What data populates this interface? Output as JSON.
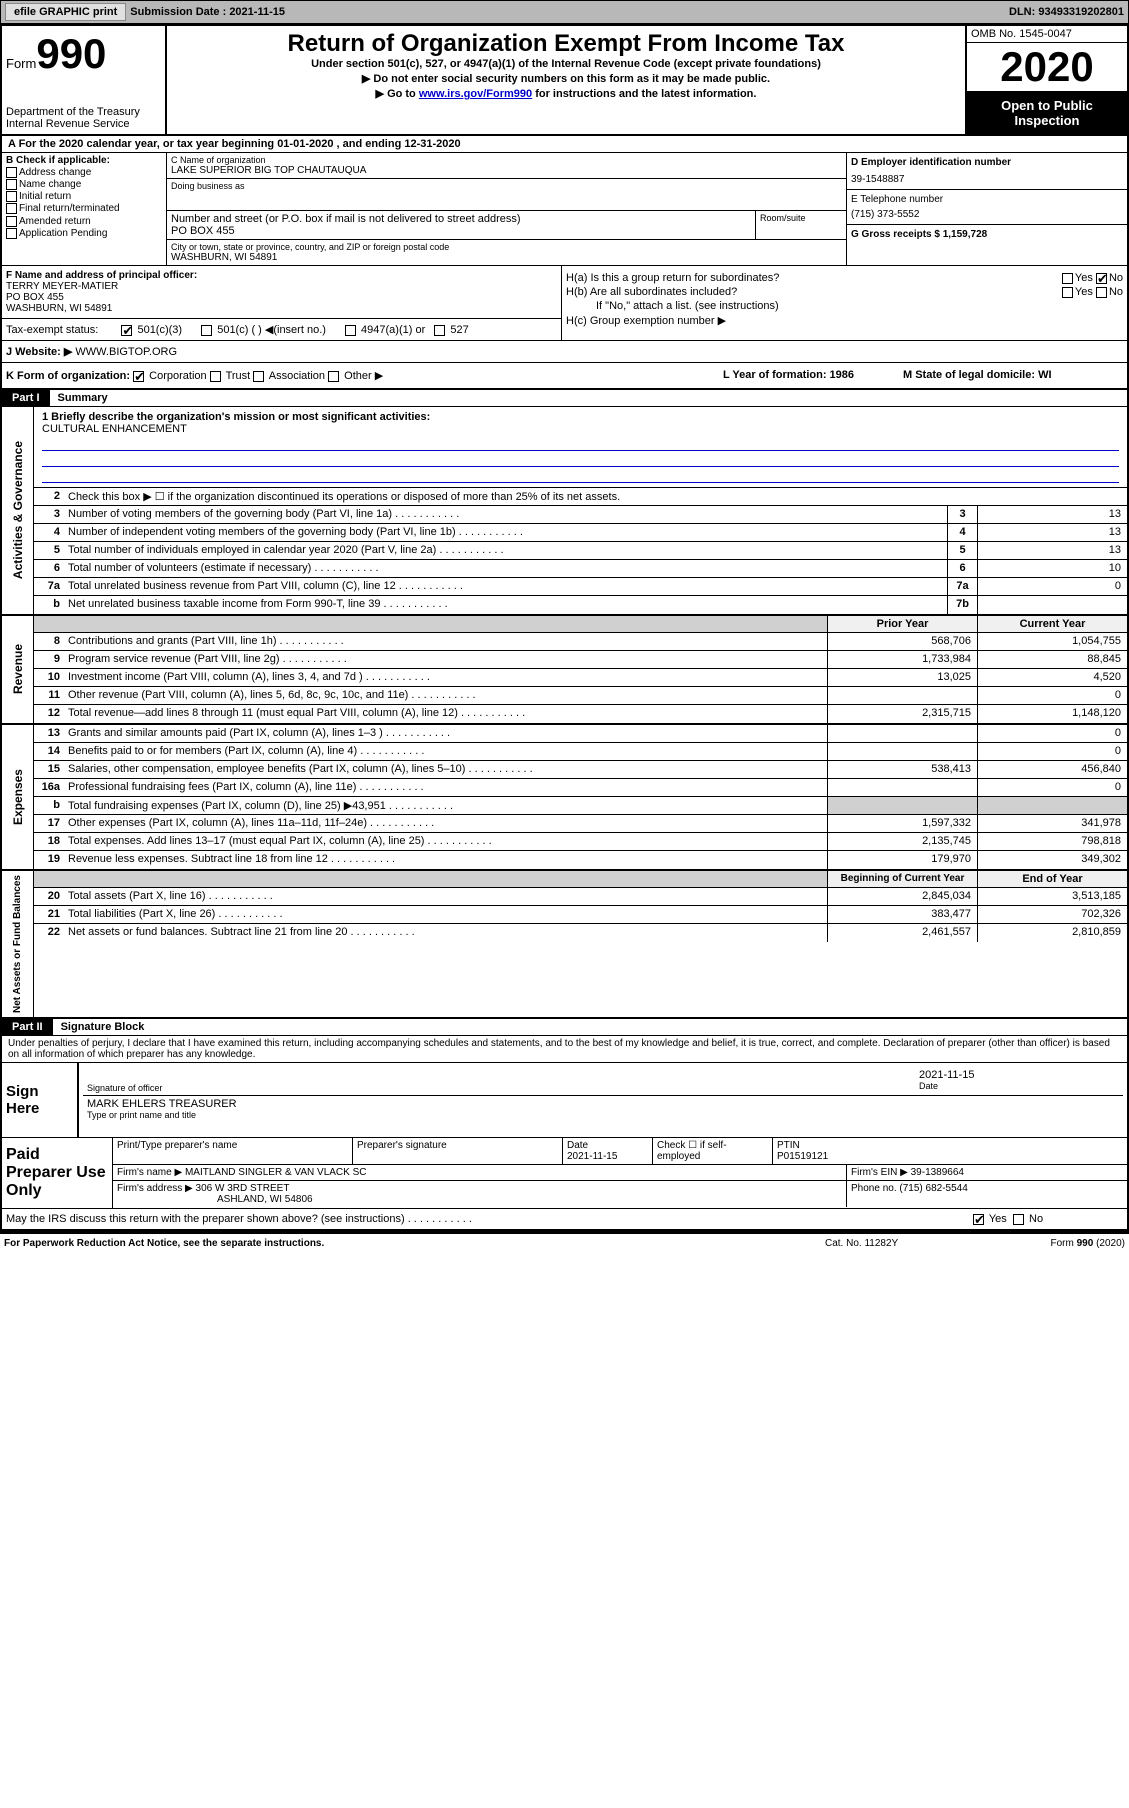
{
  "toolbar": {
    "efile": "efile GRAPHIC print",
    "submission_label": "Submission Date : 2021-11-15",
    "dln": "DLN: 93493319202801"
  },
  "header": {
    "form_prefix": "Form",
    "form_number": "990",
    "dept": "Department of the Treasury\nInternal Revenue Service",
    "title": "Return of Organization Exempt From Income Tax",
    "subtitle": "Under section 501(c), 527, or 4947(a)(1) of the Internal Revenue Code (except private foundations)",
    "line1": "▶ Do not enter social security numbers on this form as it may be made public.",
    "line2_pre": "▶ Go to ",
    "line2_link": "www.irs.gov/Form990",
    "line2_post": " for instructions and the latest information.",
    "omb": "OMB No. 1545-0047",
    "year": "2020",
    "open": "Open to Public Inspection"
  },
  "row_a": "A For the 2020 calendar year, or tax year beginning 01-01-2020    , and ending 12-31-2020",
  "col_b": {
    "header": "B Check if applicable:",
    "items": [
      "Address change",
      "Name change",
      "Initial return",
      "Final return/terminated",
      "Amended return",
      "Application Pending"
    ]
  },
  "col_c": {
    "name_lbl": "C Name of organization",
    "name": "LAKE SUPERIOR BIG TOP CHAUTAUQUA",
    "dba_lbl": "Doing business as",
    "addr_lbl": "Number and street (or P.O. box if mail is not delivered to street address)",
    "addr": "PO BOX 455",
    "room_lbl": "Room/suite",
    "city_lbl": "City or town, state or province, country, and ZIP or foreign postal code",
    "city": "WASHBURN, WI  54891"
  },
  "col_d": {
    "ein_lbl": "D Employer identification number",
    "ein": "39-1548887",
    "phone_lbl": "E Telephone number",
    "phone": "(715) 373-5552",
    "gross_lbl": "G Gross receipts $ 1,159,728"
  },
  "section_f": {
    "lbl": "F Name and address of principal officer:",
    "name": "TERRY MEYER-MATIER",
    "addr1": "PO BOX 455",
    "addr2": "WASHBURN, WI  54891"
  },
  "section_h": {
    "ha": "H(a)  Is this a group return for subordinates?",
    "ha_yes": "Yes",
    "ha_no": "No",
    "hb": "H(b)  Are all subordinates included?",
    "hb_note": "If \"No,\" attach a list. (see instructions)",
    "hc": "H(c)  Group exemption number ▶"
  },
  "tax_exempt": {
    "lbl": "Tax-exempt status:",
    "o1": "501(c)(3)",
    "o2": "501(c) (  ) ◀(insert no.)",
    "o3": "4947(a)(1) or",
    "o4": "527"
  },
  "website": {
    "lbl": "J   Website: ▶",
    "val": "  WWW.BIGTOP.ORG"
  },
  "row_k": {
    "lbl": "K Form of organization:",
    "corp": "Corporation",
    "trust": "Trust",
    "assoc": "Association",
    "other": "Other ▶",
    "l": "L Year of formation: 1986",
    "m": "M State of legal domicile: WI"
  },
  "part1": {
    "tag": "Part I",
    "title": "Summary"
  },
  "governance": {
    "label": "Activities & Governance",
    "line1_lbl": "1  Briefly describe the organization's mission or most significant activities:",
    "line1_val": "CULTURAL ENHANCEMENT",
    "line2": "Check this box ▶ ☐  if the organization discontinued its operations or disposed of more than 25% of its net assets.",
    "rows": [
      {
        "n": "3",
        "d": "Number of voting members of the governing body (Part VI, line 1a)",
        "b": "3",
        "v": "13"
      },
      {
        "n": "4",
        "d": "Number of independent voting members of the governing body (Part VI, line 1b)",
        "b": "4",
        "v": "13"
      },
      {
        "n": "5",
        "d": "Total number of individuals employed in calendar year 2020 (Part V, line 2a)",
        "b": "5",
        "v": "13"
      },
      {
        "n": "6",
        "d": "Total number of volunteers (estimate if necessary)",
        "b": "6",
        "v": "10"
      },
      {
        "n": "7a",
        "d": "Total unrelated business revenue from Part VIII, column (C), line 12",
        "b": "7a",
        "v": "0"
      },
      {
        "n": "b",
        "d": "Net unrelated business taxable income from Form 990-T, line 39",
        "b": "7b",
        "v": ""
      }
    ]
  },
  "revenue": {
    "label": "Revenue",
    "header_prior": "Prior Year",
    "header_current": "Current Year",
    "rows": [
      {
        "n": "8",
        "d": "Contributions and grants (Part VIII, line 1h)",
        "p": "568,706",
        "c": "1,054,755"
      },
      {
        "n": "9",
        "d": "Program service revenue (Part VIII, line 2g)",
        "p": "1,733,984",
        "c": "88,845"
      },
      {
        "n": "10",
        "d": "Investment income (Part VIII, column (A), lines 3, 4, and 7d )",
        "p": "13,025",
        "c": "4,520"
      },
      {
        "n": "11",
        "d": "Other revenue (Part VIII, column (A), lines 5, 6d, 8c, 9c, 10c, and 11e)",
        "p": "",
        "c": "0"
      },
      {
        "n": "12",
        "d": "Total revenue—add lines 8 through 11 (must equal Part VIII, column (A), line 12)",
        "p": "2,315,715",
        "c": "1,148,120"
      }
    ]
  },
  "expenses": {
    "label": "Expenses",
    "rows": [
      {
        "n": "13",
        "d": "Grants and similar amounts paid (Part IX, column (A), lines 1–3 )",
        "p": "",
        "c": "0"
      },
      {
        "n": "14",
        "d": "Benefits paid to or for members (Part IX, column (A), line 4)",
        "p": "",
        "c": "0"
      },
      {
        "n": "15",
        "d": "Salaries, other compensation, employee benefits (Part IX, column (A), lines 5–10)",
        "p": "538,413",
        "c": "456,840"
      },
      {
        "n": "16a",
        "d": "Professional fundraising fees (Part IX, column (A), line 11e)",
        "p": "",
        "c": "0"
      },
      {
        "n": "b",
        "d": "Total fundraising expenses (Part IX, column (D), line 25) ▶43,951",
        "p": "GREY",
        "c": "GREY"
      },
      {
        "n": "17",
        "d": "Other expenses (Part IX, column (A), lines 11a–11d, 11f–24e)",
        "p": "1,597,332",
        "c": "341,978"
      },
      {
        "n": "18",
        "d": "Total expenses. Add lines 13–17 (must equal Part IX, column (A), line 25)",
        "p": "2,135,745",
        "c": "798,818"
      },
      {
        "n": "19",
        "d": "Revenue less expenses. Subtract line 18 from line 12",
        "p": "179,970",
        "c": "349,302"
      }
    ]
  },
  "netassets": {
    "label": "Net Assets or Fund Balances",
    "header_prior": "Beginning of Current Year",
    "header_current": "End of Year",
    "rows": [
      {
        "n": "20",
        "d": "Total assets (Part X, line 16)",
        "p": "2,845,034",
        "c": "3,513,185"
      },
      {
        "n": "21",
        "d": "Total liabilities (Part X, line 26)",
        "p": "383,477",
        "c": "702,326"
      },
      {
        "n": "22",
        "d": "Net assets or fund balances. Subtract line 21 from line 20",
        "p": "2,461,557",
        "c": "2,810,859"
      }
    ]
  },
  "part2": {
    "tag": "Part II",
    "title": "Signature Block"
  },
  "sig": {
    "declaration": "Under penalties of perjury, I declare that I have examined this return, including accompanying schedules and statements, and to the best of my knowledge and belief, it is true, correct, and complete. Declaration of preparer (other than officer) is based on all information of which preparer has any knowledge.",
    "sign_here": "Sign Here",
    "sig_officer": "Signature of officer",
    "sig_date": "2021-11-15",
    "date_lbl": "Date",
    "officer_name": "MARK EHLERS  TREASURER",
    "type_lbl": "Type or print name and title"
  },
  "paid": {
    "lbl": "Paid Preparer Use Only",
    "h_print": "Print/Type preparer's name",
    "h_sig": "Preparer's signature",
    "h_date": "Date",
    "date": "2021-11-15",
    "h_check": "Check ☐  if self-employed",
    "h_ptin": "PTIN",
    "ptin": "P01519121",
    "firm_name_lbl": "Firm's name      ▶",
    "firm_name": "MAITLAND SINGLER & VAN VLACK SC",
    "firm_ein_lbl": "Firm's EIN ▶",
    "firm_ein": "39-1389664",
    "firm_addr_lbl": "Firm's address ▶",
    "firm_addr1": "306 W 3RD STREET",
    "firm_addr2": "ASHLAND, WI  54806",
    "phone_lbl": "Phone no.",
    "phone": "(715) 682-5544"
  },
  "discuss": {
    "q": "May the IRS discuss this return with the preparer shown above? (see instructions)",
    "yes": "Yes",
    "no": "No"
  },
  "footer": {
    "left": "For Paperwork Reduction Act Notice, see the separate instructions.",
    "mid": "Cat. No. 11282Y",
    "right_pre": "Form ",
    "right_b": "990",
    "right_post": " (2020)"
  }
}
